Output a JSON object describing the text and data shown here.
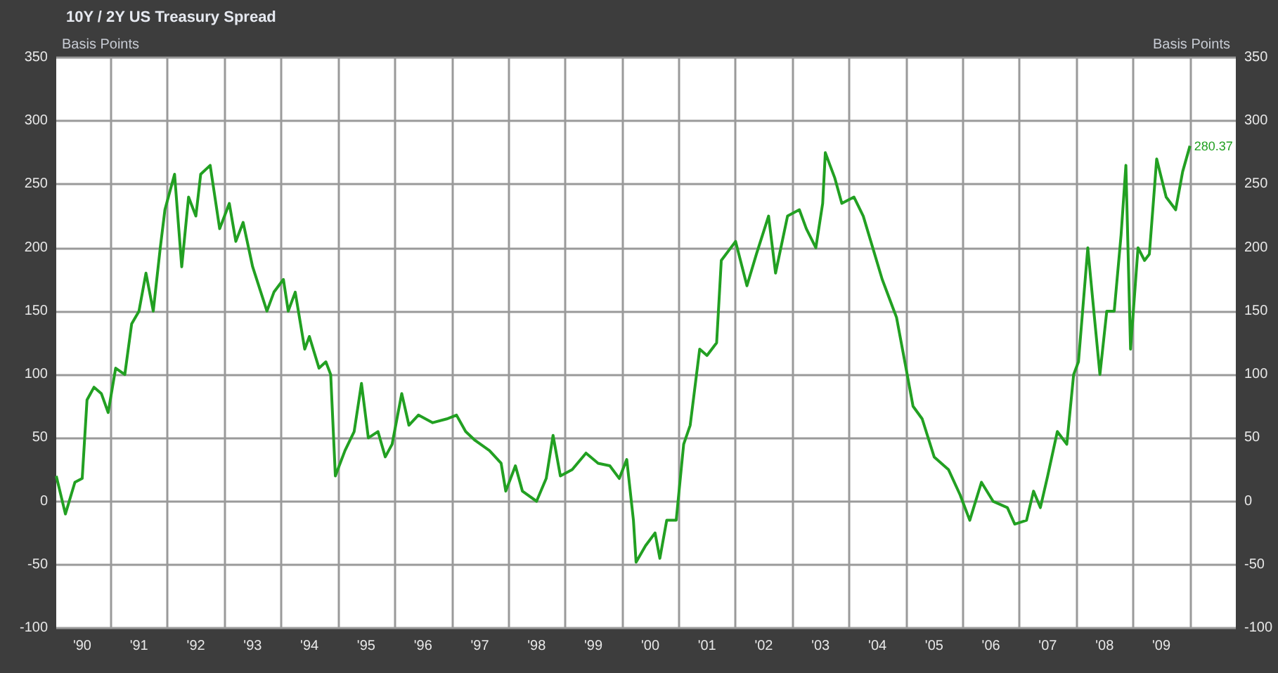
{
  "chart_data": {
    "type": "line",
    "title": "10Y / 2Y US Treasury Spread",
    "ylabel": "Basis Points",
    "y2label": "Basis Points",
    "x": [
      "1990-01-15",
      "1990-03-15",
      "1990-05-15",
      "1990-07-01",
      "1990-08-01",
      "1990-09-15",
      "1990-11-01",
      "1990-12-15",
      "1991-02-01",
      "1991-04-01",
      "1991-05-15",
      "1991-07-01",
      "1991-08-15",
      "1991-10-01",
      "1991-11-15",
      "1991-12-15",
      "1992-02-15",
      "1992-04-01",
      "1992-05-15",
      "1992-07-01",
      "1992-08-01",
      "1992-10-01",
      "1992-12-01",
      "1993-02-01",
      "1993-03-15",
      "1993-05-01",
      "1993-07-01",
      "1993-10-01",
      "1993-11-15",
      "1994-01-15",
      "1994-02-15",
      "1994-04-01",
      "1994-06-01",
      "1994-07-01",
      "1994-09-01",
      "1994-10-15",
      "1994-11-15",
      "1994-12-15",
      "1995-02-15",
      "1995-04-15",
      "1995-06-01",
      "1995-07-15",
      "1995-09-15",
      "1995-11-01",
      "1995-12-15",
      "1996-02-15",
      "1996-04-01",
      "1996-06-01",
      "1996-09-01",
      "1996-12-01",
      "1997-02-01",
      "1997-04-01",
      "1997-06-01",
      "1997-09-01",
      "1997-11-15",
      "1997-12-15",
      "1998-02-15",
      "1998-04-01",
      "1998-07-01",
      "1998-09-01",
      "1998-10-15",
      "1998-12-01",
      "1999-02-15",
      "1999-05-15",
      "1999-08-01",
      "1999-10-15",
      "1999-12-15",
      "2000-02-01",
      "2000-03-15",
      "2000-04-01",
      "2000-06-01",
      "2000-08-01",
      "2000-09-01",
      "2000-10-15",
      "2000-12-15",
      "2001-02-01",
      "2001-03-15",
      "2001-05-15",
      "2001-07-01",
      "2001-09-01",
      "2001-10-01",
      "2002-01-01",
      "2002-03-15",
      "2002-05-15",
      "2002-08-01",
      "2002-09-15",
      "2002-12-01",
      "2003-02-15",
      "2003-04-01",
      "2003-06-01",
      "2003-07-15",
      "2003-08-01",
      "2003-10-01",
      "2003-11-15",
      "2004-02-01",
      "2004-04-01",
      "2004-06-01",
      "2004-08-01",
      "2004-11-01",
      "2005-01-01",
      "2005-02-15",
      "2005-04-15",
      "2005-07-01",
      "2005-10-01",
      "2005-12-15",
      "2006-02-15",
      "2006-05-01",
      "2006-07-15",
      "2006-10-15",
      "2006-12-01",
      "2007-02-15",
      "2007-04-01",
      "2007-05-15",
      "2007-07-01",
      "2007-09-01",
      "2007-11-01",
      "2007-12-15",
      "2008-01-15",
      "2008-03-15",
      "2008-04-15",
      "2008-06-01",
      "2008-07-15",
      "2008-09-01",
      "2008-10-15",
      "2008-11-15",
      "2008-12-15",
      "2009-02-01",
      "2009-03-15",
      "2009-04-15",
      "2009-06-01",
      "2009-08-01",
      "2009-10-01",
      "2009-11-15",
      "2010-01-01"
    ],
    "series": [
      {
        "color": "#22a022",
        "values": [
          20,
          -10,
          15,
          18,
          80,
          90,
          85,
          70,
          105,
          100,
          140,
          150,
          180,
          150,
          200,
          230,
          258,
          185,
          240,
          225,
          258,
          265,
          215,
          235,
          205,
          220,
          185,
          150,
          165,
          175,
          150,
          165,
          120,
          130,
          105,
          110,
          100,
          20,
          40,
          55,
          93,
          50,
          55,
          35,
          45,
          85,
          60,
          68,
          62,
          65,
          68,
          55,
          48,
          40,
          30,
          8,
          28,
          8,
          0,
          18,
          52,
          20,
          25,
          38,
          30,
          28,
          18,
          33,
          -15,
          -48,
          -35,
          -25,
          -45,
          -15,
          -15,
          45,
          60,
          120,
          115,
          125,
          190,
          205,
          170,
          195,
          225,
          180,
          225,
          230,
          215,
          200,
          235,
          275,
          255,
          235,
          240,
          225,
          200,
          175,
          145,
          105,
          75,
          65,
          35,
          25,
          5,
          -15,
          15,
          0,
          -5,
          -18,
          -15,
          8,
          -5,
          20,
          55,
          45,
          100,
          110,
          200,
          160,
          100,
          150,
          150,
          210,
          265,
          120,
          200,
          190,
          195,
          270,
          240,
          230,
          260,
          280.37
        ]
      }
    ],
    "xlim": [
      "1990-01-15",
      "2010-10-23"
    ],
    "xticks": [
      {
        "value": "1990-07-01",
        "label": "'90"
      },
      {
        "value": "1991-01-01",
        "label": null
      },
      {
        "value": "1991-07-01",
        "label": "'91"
      },
      {
        "value": "1992-01-01",
        "label": null
      },
      {
        "value": "1992-07-01",
        "label": "'92"
      },
      {
        "value": "1993-01-01",
        "label": null
      },
      {
        "value": "1993-07-01",
        "label": "'93"
      },
      {
        "value": "1994-01-01",
        "label": null
      },
      {
        "value": "1994-07-01",
        "label": "'94"
      },
      {
        "value": "1995-01-01",
        "label": null
      },
      {
        "value": "1995-07-01",
        "label": "'95"
      },
      {
        "value": "1996-01-01",
        "label": null
      },
      {
        "value": "1996-07-01",
        "label": "'96"
      },
      {
        "value": "1997-01-01",
        "label": null
      },
      {
        "value": "1997-07-01",
        "label": "'97"
      },
      {
        "value": "1998-01-01",
        "label": null
      },
      {
        "value": "1998-07-01",
        "label": "'98"
      },
      {
        "value": "1999-01-01",
        "label": null
      },
      {
        "value": "1999-07-01",
        "label": "'99"
      },
      {
        "value": "2000-01-01",
        "label": null
      },
      {
        "value": "2000-07-01",
        "label": "'00"
      },
      {
        "value": "2001-01-01",
        "label": null
      },
      {
        "value": "2001-07-01",
        "label": "'01"
      },
      {
        "value": "2002-01-01",
        "label": null
      },
      {
        "value": "2002-07-01",
        "label": "'02"
      },
      {
        "value": "2003-01-01",
        "label": null
      },
      {
        "value": "2003-07-01",
        "label": "'03"
      },
      {
        "value": "2004-01-01",
        "label": null
      },
      {
        "value": "2004-07-01",
        "label": "'04"
      },
      {
        "value": "2005-01-01",
        "label": null
      },
      {
        "value": "2005-07-01",
        "label": "'05"
      },
      {
        "value": "2006-01-01",
        "label": null
      },
      {
        "value": "2006-07-01",
        "label": "'06"
      },
      {
        "value": "2007-01-01",
        "label": null
      },
      {
        "value": "2007-07-01",
        "label": "'07"
      },
      {
        "value": "2008-01-01",
        "label": null
      },
      {
        "value": "2008-07-01",
        "label": "'08"
      },
      {
        "value": "2009-01-01",
        "label": null
      },
      {
        "value": "2009-07-01",
        "label": "'09"
      },
      {
        "value": "2010-01-01",
        "label": null
      }
    ],
    "ylim": [
      -100,
      350
    ],
    "yticks": [
      -100,
      -50,
      0,
      50,
      100,
      150,
      200,
      250,
      300,
      350
    ],
    "y2lim": [
      -100,
      350
    ],
    "y2ticks": [
      -100,
      -50,
      0,
      50,
      100,
      150,
      200,
      250,
      300,
      350
    ],
    "annotations": [
      {
        "text": "280.37",
        "x": "2010-01-01",
        "y": 280.37
      }
    ],
    "grid": true,
    "marker": "none",
    "line_style": "solid"
  }
}
